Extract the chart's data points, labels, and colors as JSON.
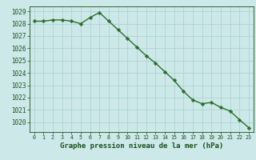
{
  "x": [
    0,
    1,
    2,
    3,
    4,
    5,
    6,
    7,
    8,
    9,
    10,
    11,
    12,
    13,
    14,
    15,
    16,
    17,
    18,
    19,
    20,
    21,
    22,
    23
  ],
  "y": [
    1028.2,
    1028.2,
    1028.3,
    1028.3,
    1028.2,
    1028.0,
    1028.5,
    1028.9,
    1028.2,
    1027.5,
    1026.8,
    1026.1,
    1025.4,
    1024.8,
    1024.1,
    1023.4,
    1022.5,
    1021.8,
    1021.5,
    1021.6,
    1021.2,
    1020.9,
    1020.2,
    1019.55
  ],
  "ylim": [
    1019.2,
    1029.4
  ],
  "yticks": [
    1020,
    1021,
    1022,
    1023,
    1024,
    1025,
    1026,
    1027,
    1028,
    1029
  ],
  "xticks": [
    0,
    1,
    2,
    3,
    4,
    5,
    6,
    7,
    8,
    9,
    10,
    11,
    12,
    13,
    14,
    15,
    16,
    17,
    18,
    19,
    20,
    21,
    22,
    23
  ],
  "xlabel": "Graphe pression niveau de la mer (hPa)",
  "line_color": "#2d6e2d",
  "marker": "D",
  "bg_color": "#cce8e8",
  "grid_color": "#aacfcf",
  "tick_color": "#1a4f1a",
  "label_color": "#1a4f1a",
  "marker_size": 2.2,
  "line_width": 1.0,
  "ytick_fontsize": 5.5,
  "xtick_fontsize": 4.8,
  "xlabel_fontsize": 6.5
}
